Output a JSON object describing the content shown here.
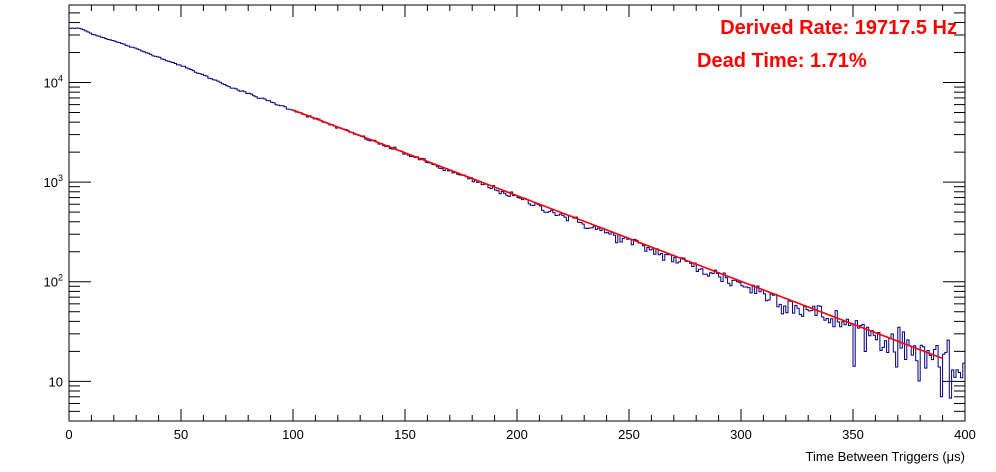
{
  "chart_data": {
    "type": "line",
    "title": "",
    "xlabel": "Time Between Triggers (μs)",
    "ylabel": "",
    "xlim": [
      0,
      400
    ],
    "ylim": [
      4,
      60000
    ],
    "y_scale": "log",
    "grid": false,
    "legend": "none",
    "x_ticks": [
      0,
      50,
      100,
      150,
      200,
      250,
      300,
      350,
      400
    ],
    "y_ticks": [
      {
        "value": 10,
        "label": "10"
      },
      {
        "value": 100,
        "label": "10",
        "exponent": "2"
      },
      {
        "value": 1000,
        "label": "10",
        "exponent": "3"
      },
      {
        "value": 10000,
        "label": "10",
        "exponent": "4"
      }
    ],
    "annotations": [
      {
        "text": "Derived Rate: 19717.5 Hz",
        "color": "#ff0000"
      },
      {
        "text": "Dead Time: 1.71%",
        "color": "#ff0000"
      }
    ],
    "series": [
      {
        "kind": "histogram",
        "color": "#000080",
        "bin_width": 1,
        "x": [
          0,
          5,
          10,
          25,
          50,
          75,
          100,
          125,
          150,
          175,
          200,
          225,
          250,
          275,
          300,
          325,
          350,
          375,
          388,
          389,
          390,
          395,
          399
        ],
        "values": [
          35000,
          35000,
          31000,
          24000,
          14800,
          8500,
          5300,
          3200,
          1950,
          1160,
          700,
          420,
          255,
          155,
          95,
          57,
          35,
          22,
          18,
          7,
          18,
          13,
          13
        ]
      },
      {
        "kind": "fit",
        "color": "#ff0000",
        "x": [
          100,
          390
        ],
        "values": [
          5300,
          17
        ]
      }
    ]
  }
}
